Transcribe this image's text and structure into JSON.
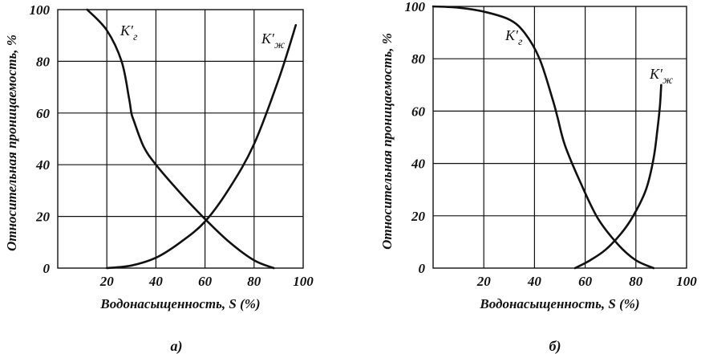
{
  "chart_data": [
    {
      "type": "line",
      "caption": "а)",
      "xlabel": "Водонасыщенность, S (%)",
      "ylabel": "Относительная проницаемость, %",
      "xlim": [
        0,
        100
      ],
      "ylim": [
        0,
        100
      ],
      "xticks": [
        "20",
        "40",
        "60",
        "80",
        "100"
      ],
      "yticks": [
        "0",
        "20",
        "40",
        "60",
        "80",
        "100"
      ],
      "grid": true,
      "series": [
        {
          "name": "K′г",
          "label_main": "K′",
          "label_sub": "г",
          "x": [
            12,
            20,
            26,
            29,
            30,
            31,
            35,
            40,
            50,
            60,
            70,
            80,
            88
          ],
          "y": [
            100,
            92,
            80,
            66,
            60,
            57,
            47,
            40,
            29,
            19,
            10,
            3,
            0
          ]
        },
        {
          "name": "K′ж",
          "label_main": "K′",
          "label_sub": "ж",
          "x": [
            20,
            30,
            40,
            50,
            60,
            70,
            80,
            90,
            97
          ],
          "y": [
            0,
            1,
            4,
            10,
            18,
            31,
            48,
            73,
            94
          ]
        }
      ]
    },
    {
      "type": "line",
      "caption": "б)",
      "xlabel": "Водонасыщенность, S (%)",
      "ylabel": "Относительная проницаемость, %",
      "xlim": [
        0,
        100
      ],
      "ylim": [
        0,
        100
      ],
      "xticks": [
        "20",
        "40",
        "60",
        "80",
        "100"
      ],
      "yticks": [
        "0",
        "20",
        "40",
        "60",
        "80",
        "100"
      ],
      "grid": true,
      "series": [
        {
          "name": "K′г",
          "label_main": "K′",
          "label_sub": "г",
          "x": [
            0,
            10,
            20,
            30,
            36,
            42,
            47,
            49,
            52,
            58,
            65,
            73,
            80,
            87
          ],
          "y": [
            100,
            99.5,
            98,
            95,
            90,
            80,
            65,
            58,
            47,
            33,
            19,
            9,
            3,
            0
          ]
        },
        {
          "name": "K′ж",
          "label_main": "K′",
          "label_sub": "ж",
          "x": [
            56,
            62,
            68,
            74,
            79,
            84,
            87,
            88.5,
            89.5,
            90
          ],
          "y": [
            0,
            3,
            7,
            13,
            20,
            30,
            42,
            53,
            62,
            70
          ]
        }
      ]
    }
  ]
}
